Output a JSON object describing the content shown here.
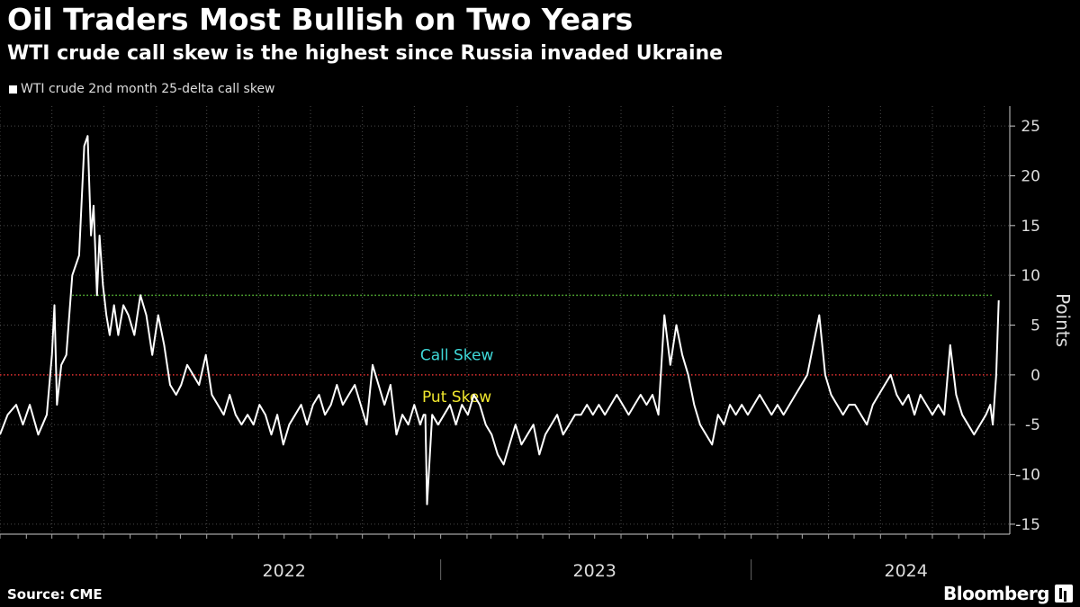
{
  "header": {
    "title": "Oil Traders Most Bullish on Two Years",
    "subtitle": "WTI crude call skew is the highest since Russia invaded Ukraine"
  },
  "legend": {
    "label": "WTI crude 2nd month 25-delta call skew"
  },
  "footer": {
    "source": "Source: CME",
    "brand": "Bloomberg"
  },
  "chart_data": {
    "type": "line",
    "ylabel": "Points",
    "ylim": [
      -16,
      27
    ],
    "yticks": [
      25,
      20,
      15,
      10,
      5,
      0,
      -5,
      -10,
      -15
    ],
    "xlim": [
      "2021-08-01",
      "2024-10-31"
    ],
    "xticklabels": [
      {
        "label": "2022",
        "date": "2022-07-01"
      },
      {
        "label": "2023",
        "date": "2023-07-01"
      },
      {
        "label": "2024",
        "date": "2024-07-01"
      }
    ],
    "annotations": [
      {
        "text": "Call Skew",
        "color": "#3fd8d8"
      },
      {
        "text": "Put Skew",
        "color": "#f2e82e"
      }
    ],
    "reference_lines": [
      {
        "y": 0,
        "color": "#e03030",
        "style": "dotted"
      },
      {
        "y": 8,
        "color": "#5ec63b",
        "style": "dotted"
      }
    ],
    "series": [
      {
        "color": "#ffffff",
        "x": [
          "2021-08-01",
          "2021-08-10",
          "2021-08-20",
          "2021-08-28",
          "2021-09-05",
          "2021-09-15",
          "2021-09-25",
          "2021-10-01",
          "2021-10-04",
          "2021-10-07",
          "2021-10-12",
          "2021-10-18",
          "2021-10-25",
          "2021-11-02",
          "2021-11-08",
          "2021-11-12",
          "2021-11-16",
          "2021-11-19",
          "2021-11-23",
          "2021-11-26",
          "2021-11-30",
          "2021-12-04",
          "2021-12-08",
          "2021-12-13",
          "2021-12-18",
          "2021-12-24",
          "2021-12-30",
          "2022-01-06",
          "2022-01-13",
          "2022-01-20",
          "2022-01-27",
          "2022-02-03",
          "2022-02-10",
          "2022-02-17",
          "2022-02-24",
          "2022-03-02",
          "2022-03-09",
          "2022-03-16",
          "2022-03-23",
          "2022-03-31",
          "2022-04-07",
          "2022-04-14",
          "2022-04-21",
          "2022-04-28",
          "2022-05-05",
          "2022-05-12",
          "2022-05-19",
          "2022-05-26",
          "2022-06-02",
          "2022-06-09",
          "2022-06-16",
          "2022-06-23",
          "2022-06-30",
          "2022-07-07",
          "2022-07-14",
          "2022-07-21",
          "2022-07-28",
          "2022-08-04",
          "2022-08-11",
          "2022-08-18",
          "2022-08-25",
          "2022-09-01",
          "2022-09-08",
          "2022-09-15",
          "2022-09-22",
          "2022-09-29",
          "2022-10-06",
          "2022-10-13",
          "2022-10-20",
          "2022-10-27",
          "2022-11-03",
          "2022-11-10",
          "2022-11-17",
          "2022-11-24",
          "2022-12-01",
          "2022-12-08",
          "2022-12-12",
          "2022-12-14",
          "2022-12-16",
          "2022-12-22",
          "2022-12-29",
          "2023-01-05",
          "2023-01-12",
          "2023-01-19",
          "2023-01-26",
          "2023-02-02",
          "2023-02-09",
          "2023-02-16",
          "2023-02-23",
          "2023-03-02",
          "2023-03-09",
          "2023-03-16",
          "2023-03-23",
          "2023-03-30",
          "2023-04-06",
          "2023-04-13",
          "2023-04-20",
          "2023-04-27",
          "2023-05-04",
          "2023-05-11",
          "2023-05-18",
          "2023-05-25",
          "2023-06-01",
          "2023-06-08",
          "2023-06-15",
          "2023-06-22",
          "2023-06-29",
          "2023-07-06",
          "2023-07-13",
          "2023-07-20",
          "2023-07-27",
          "2023-08-03",
          "2023-08-10",
          "2023-08-17",
          "2023-08-24",
          "2023-08-31",
          "2023-09-07",
          "2023-09-14",
          "2023-09-21",
          "2023-09-28",
          "2023-10-05",
          "2023-10-12",
          "2023-10-19",
          "2023-10-26",
          "2023-11-02",
          "2023-11-09",
          "2023-11-16",
          "2023-11-23",
          "2023-11-30",
          "2023-12-07",
          "2023-12-14",
          "2023-12-21",
          "2023-12-28",
          "2024-01-04",
          "2024-01-11",
          "2024-01-18",
          "2024-01-25",
          "2024-02-01",
          "2024-02-08",
          "2024-02-15",
          "2024-02-22",
          "2024-02-29",
          "2024-03-07",
          "2024-03-14",
          "2024-03-21",
          "2024-03-28",
          "2024-04-04",
          "2024-04-11",
          "2024-04-18",
          "2024-04-25",
          "2024-05-02",
          "2024-05-09",
          "2024-05-16",
          "2024-05-23",
          "2024-05-30",
          "2024-06-06",
          "2024-06-13",
          "2024-06-20",
          "2024-06-27",
          "2024-07-04",
          "2024-07-11",
          "2024-07-18",
          "2024-07-25",
          "2024-08-01",
          "2024-08-08",
          "2024-08-15",
          "2024-08-22",
          "2024-08-29",
          "2024-09-05",
          "2024-09-12",
          "2024-09-19",
          "2024-09-26",
          "2024-10-03",
          "2024-10-08",
          "2024-10-11",
          "2024-10-15",
          "2024-10-18"
        ],
        "y": [
          -6,
          -4,
          -3,
          -5,
          -3,
          -6,
          -4,
          2,
          7,
          -3,
          1,
          2,
          10,
          12,
          23,
          24,
          14,
          17,
          8,
          14,
          9,
          6,
          4,
          7,
          4,
          7,
          6,
          4,
          8,
          6,
          2,
          6,
          3,
          -1,
          -2,
          -1,
          1,
          0,
          -1,
          2,
          -2,
          -3,
          -4,
          -2,
          -4,
          -5,
          -4,
          -5,
          -3,
          -4,
          -6,
          -4,
          -7,
          -5,
          -4,
          -3,
          -5,
          -3,
          -2,
          -4,
          -3,
          -1,
          -3,
          -2,
          -1,
          -3,
          -5,
          1,
          -1,
          -3,
          -1,
          -6,
          -4,
          -5,
          -3,
          -5,
          -4,
          -4,
          -13,
          -4,
          -5,
          -4,
          -3,
          -5,
          -3,
          -4,
          -2,
          -3,
          -5,
          -6,
          -8,
          -9,
          -7,
          -5,
          -7,
          -6,
          -5,
          -8,
          -6,
          -5,
          -4,
          -6,
          -5,
          -4,
          -4,
          -3,
          -4,
          -3,
          -4,
          -3,
          -2,
          -3,
          -4,
          -3,
          -2,
          -3,
          -2,
          -4,
          6,
          1,
          5,
          2,
          0,
          -3,
          -5,
          -6,
          -7,
          -4,
          -5,
          -3,
          -4,
          -3,
          -4,
          -3,
          -2,
          -3,
          -4,
          -3,
          -4,
          -3,
          -2,
          -1,
          0,
          3,
          6,
          0,
          -2,
          -3,
          -4,
          -3,
          -3,
          -4,
          -5,
          -3,
          -2,
          -1,
          0,
          -2,
          -3,
          -2,
          -4,
          -2,
          -3,
          -4,
          -3,
          -4,
          3,
          -2,
          -4,
          -5,
          -6,
          -5,
          -4,
          -3,
          -5,
          0,
          7.5
        ]
      }
    ]
  }
}
